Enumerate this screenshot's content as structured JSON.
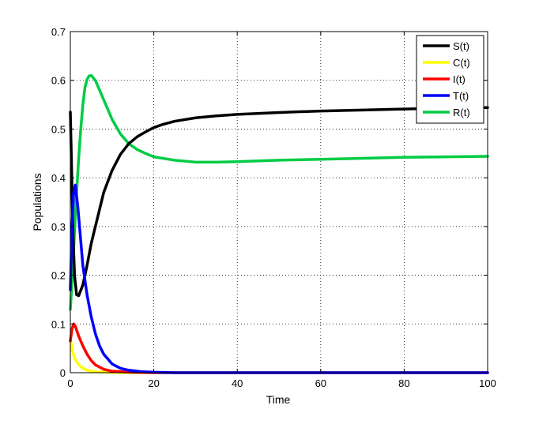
{
  "chart_data": {
    "type": "line",
    "title": "",
    "xlabel": "Time",
    "ylabel": "Populations",
    "xlim": [
      0,
      100
    ],
    "ylim": [
      0,
      0.7
    ],
    "xticks": [
      0,
      20,
      40,
      60,
      80,
      100
    ],
    "yticks": [
      0,
      0.1,
      0.2,
      0.3,
      0.4,
      0.5,
      0.6,
      0.7
    ],
    "grid": true,
    "legend_position": "top-right",
    "series": [
      {
        "name": "S(t)",
        "color": "#000000",
        "points": [
          [
            0,
            0.535
          ],
          [
            0.3,
            0.42
          ],
          [
            0.6,
            0.3
          ],
          [
            1,
            0.2
          ],
          [
            1.5,
            0.16
          ],
          [
            2,
            0.158
          ],
          [
            3,
            0.18
          ],
          [
            4,
            0.22
          ],
          [
            5,
            0.265
          ],
          [
            6,
            0.3
          ],
          [
            7,
            0.335
          ],
          [
            8,
            0.37
          ],
          [
            10,
            0.415
          ],
          [
            12,
            0.448
          ],
          [
            14,
            0.47
          ],
          [
            16,
            0.484
          ],
          [
            18,
            0.494
          ],
          [
            20,
            0.503
          ],
          [
            22,
            0.509
          ],
          [
            25,
            0.516
          ],
          [
            30,
            0.523
          ],
          [
            35,
            0.527
          ],
          [
            40,
            0.53
          ],
          [
            50,
            0.534
          ],
          [
            60,
            0.537
          ],
          [
            70,
            0.539
          ],
          [
            80,
            0.541
          ],
          [
            90,
            0.543
          ],
          [
            100,
            0.544
          ]
        ]
      },
      {
        "name": "C(t)",
        "color": "#ffff00",
        "points": [
          [
            0,
            0.07
          ],
          [
            0.5,
            0.045
          ],
          [
            1,
            0.03
          ],
          [
            2,
            0.016
          ],
          [
            3,
            0.009
          ],
          [
            4,
            0.005
          ],
          [
            6,
            0.002
          ],
          [
            8,
            0.001
          ],
          [
            12,
            0
          ],
          [
            100,
            0
          ]
        ]
      },
      {
        "name": "I(t)",
        "color": "#ff0000",
        "points": [
          [
            0,
            0.065
          ],
          [
            0.4,
            0.09
          ],
          [
            0.8,
            0.1
          ],
          [
            1.2,
            0.095
          ],
          [
            2,
            0.075
          ],
          [
            3,
            0.055
          ],
          [
            4,
            0.038
          ],
          [
            5,
            0.025
          ],
          [
            6,
            0.016
          ],
          [
            8,
            0.007
          ],
          [
            10,
            0.003
          ],
          [
            14,
            0.001
          ],
          [
            20,
            0
          ],
          [
            100,
            0
          ]
        ]
      },
      {
        "name": "T(t)",
        "color": "#0000ff",
        "points": [
          [
            0,
            0.17
          ],
          [
            0.4,
            0.3
          ],
          [
            0.8,
            0.37
          ],
          [
            1.2,
            0.385
          ],
          [
            1.8,
            0.34
          ],
          [
            2.5,
            0.27
          ],
          [
            3,
            0.22
          ],
          [
            4,
            0.16
          ],
          [
            5,
            0.115
          ],
          [
            6,
            0.08
          ],
          [
            7,
            0.055
          ],
          [
            8,
            0.038
          ],
          [
            10,
            0.018
          ],
          [
            12,
            0.009
          ],
          [
            14,
            0.005
          ],
          [
            17,
            0.002
          ],
          [
            20,
            0.001
          ],
          [
            25,
            0
          ],
          [
            100,
            0
          ]
        ]
      },
      {
        "name": "R(t)",
        "color": "#00cc44",
        "points": [
          [
            0,
            0.13
          ],
          [
            0.5,
            0.2
          ],
          [
            1,
            0.29
          ],
          [
            1.5,
            0.37
          ],
          [
            2,
            0.44
          ],
          [
            2.5,
            0.5
          ],
          [
            3,
            0.55
          ],
          [
            3.5,
            0.585
          ],
          [
            4,
            0.602
          ],
          [
            4.5,
            0.609
          ],
          [
            5,
            0.61
          ],
          [
            6,
            0.6
          ],
          [
            7,
            0.58
          ],
          [
            8,
            0.56
          ],
          [
            10,
            0.52
          ],
          [
            12,
            0.49
          ],
          [
            14,
            0.47
          ],
          [
            16,
            0.458
          ],
          [
            18,
            0.45
          ],
          [
            20,
            0.443
          ],
          [
            25,
            0.436
          ],
          [
            30,
            0.432
          ],
          [
            35,
            0.432
          ],
          [
            40,
            0.433
          ],
          [
            50,
            0.436
          ],
          [
            60,
            0.438
          ],
          [
            70,
            0.44
          ],
          [
            80,
            0.442
          ],
          [
            90,
            0.443
          ],
          [
            100,
            0.444
          ]
        ]
      }
    ]
  }
}
